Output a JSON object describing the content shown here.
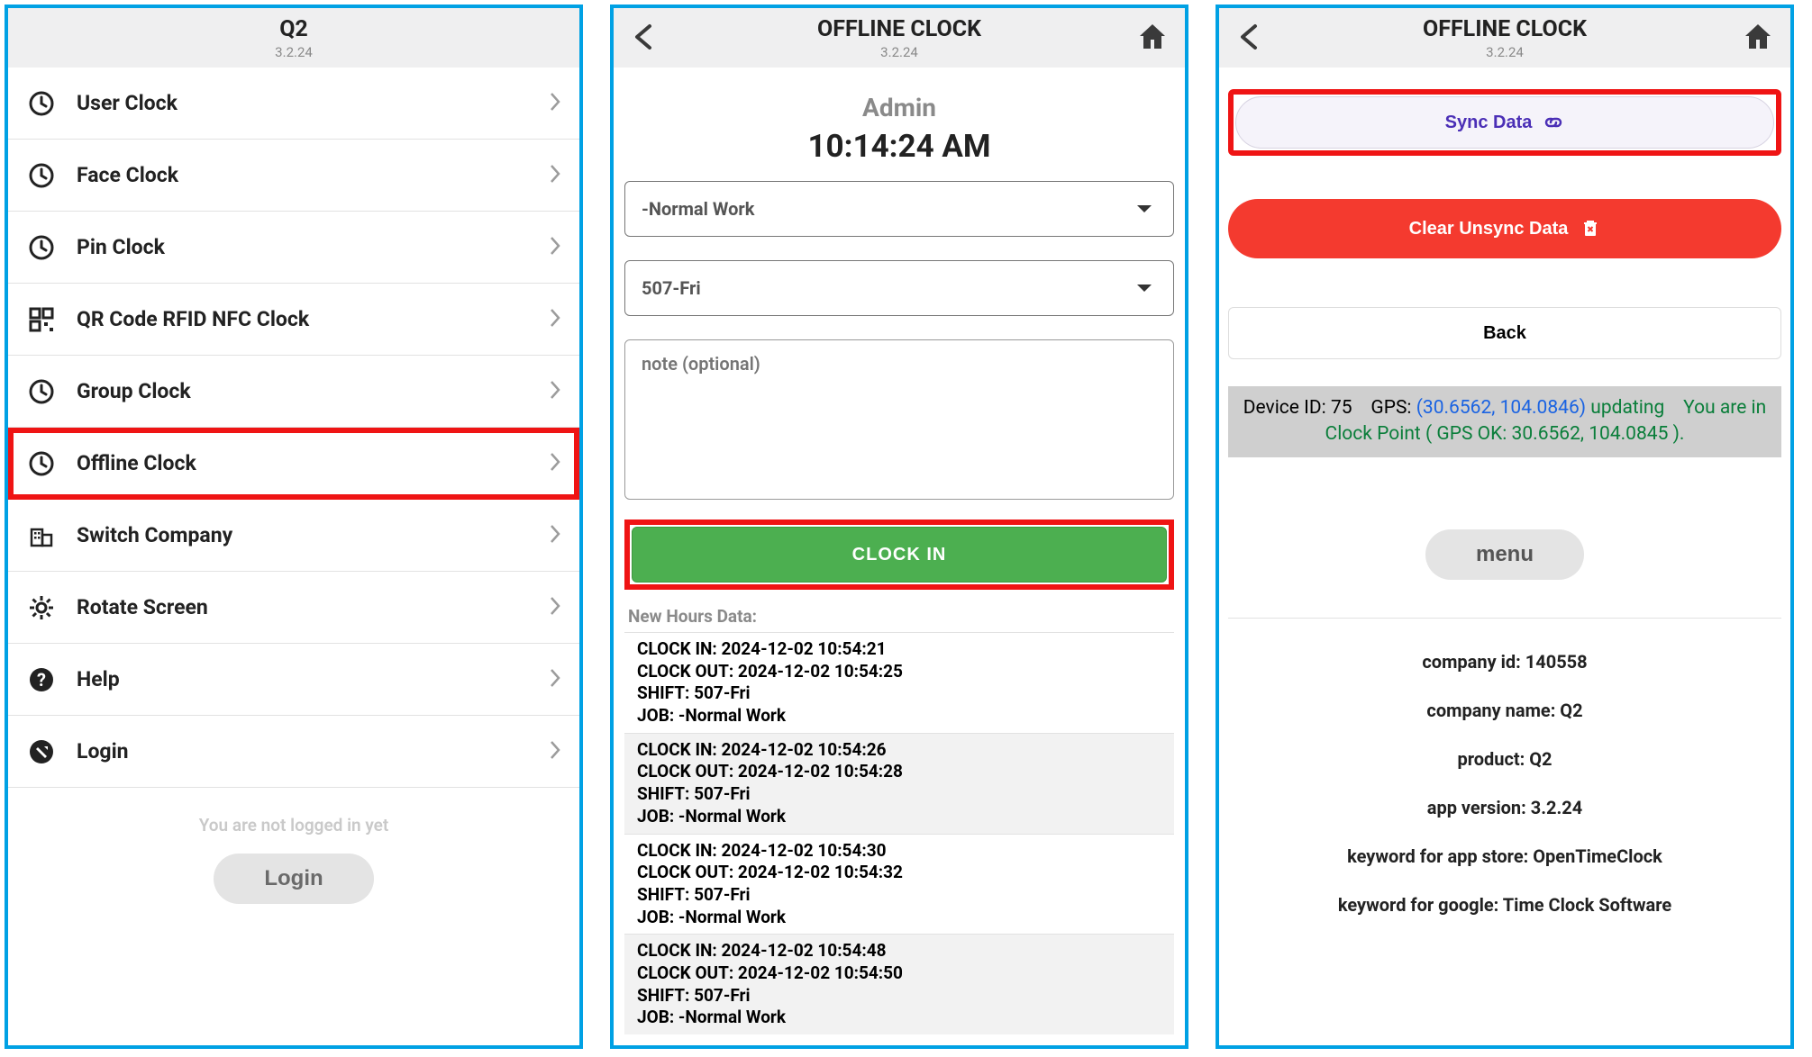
{
  "colors": {
    "phone_border": "#00a1e4",
    "highlight": "#ef1414",
    "header_bg": "#efeff0",
    "primary_green": "#4caf50",
    "danger_red": "#f43a2f",
    "sync_purple": "#4b2fb6",
    "sync_bg": "#f5f3fa",
    "device_bar_bg": "#cfcfcf"
  },
  "phone1": {
    "header": {
      "title": "Q2",
      "subtitle": "3.2.24"
    },
    "menu": [
      {
        "icon": "clock",
        "label": "User Clock",
        "highlighted": false
      },
      {
        "icon": "clock",
        "label": "Face Clock",
        "highlighted": false
      },
      {
        "icon": "clock",
        "label": "Pin Clock",
        "highlighted": false
      },
      {
        "icon": "qr",
        "label": "QR Code RFID NFC Clock",
        "highlighted": false
      },
      {
        "icon": "clock",
        "label": "Group Clock",
        "highlighted": false
      },
      {
        "icon": "clock",
        "label": "Offline Clock",
        "highlighted": true
      },
      {
        "icon": "company",
        "label": "Switch Company",
        "highlighted": false
      },
      {
        "icon": "gear",
        "label": "Rotate Screen",
        "highlighted": false
      },
      {
        "icon": "help",
        "label": "Help",
        "highlighted": false
      },
      {
        "icon": "login",
        "label": "Login",
        "highlighted": false
      }
    ],
    "footer_msg": "You are not logged in yet",
    "login_label": "Login"
  },
  "phone2": {
    "header": {
      "title": "OFFLINE CLOCK",
      "subtitle": "3.2.24"
    },
    "user": "Admin",
    "time": "10:14:24 AM",
    "job_select": "-Normal Work",
    "shift_select": "507-Fri",
    "note_placeholder": "note (optional)",
    "clockin_label": "CLOCK IN",
    "new_hours_label": "New Hours Data:",
    "hours": [
      {
        "in": "CLOCK IN: 2024-12-02 10:54:21",
        "out": "CLOCK OUT: 2024-12-02 10:54:25",
        "shift": "SHIFT: 507-Fri",
        "job": "JOB: -Normal Work"
      },
      {
        "in": "CLOCK IN: 2024-12-02 10:54:26",
        "out": "CLOCK OUT: 2024-12-02 10:54:28",
        "shift": "SHIFT: 507-Fri",
        "job": "JOB: -Normal Work"
      },
      {
        "in": "CLOCK IN: 2024-12-02 10:54:30",
        "out": "CLOCK OUT: 2024-12-02 10:54:32",
        "shift": "SHIFT: 507-Fri",
        "job": "JOB: -Normal Work"
      },
      {
        "in": "CLOCK IN: 2024-12-02 10:54:48",
        "out": "CLOCK OUT: 2024-12-02 10:54:50",
        "shift": "SHIFT: 507-Fri",
        "job": "JOB: -Normal Work"
      }
    ]
  },
  "phone3": {
    "header": {
      "title": "OFFLINE CLOCK",
      "subtitle": "3.2.24"
    },
    "sync_label": "Sync Data",
    "clear_label": "Clear Unsync Data",
    "back_label": "Back",
    "device_id_label": "Device ID:",
    "device_id": "75",
    "gps_label": "GPS:",
    "gps_coords": "(30.6562, 104.0846)",
    "gps_status": "updating",
    "gps_ok": "You are in Clock Point ( GPS OK: 30.6562, 104.0845 ).",
    "menu_label": "menu",
    "info": [
      "company id: 140558",
      "company name: Q2",
      "product: Q2",
      "app version: 3.2.24",
      "keyword for app store: OpenTimeClock",
      "keyword for google: Time Clock Software"
    ]
  }
}
